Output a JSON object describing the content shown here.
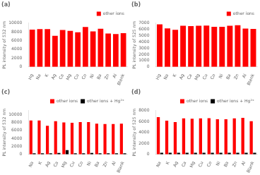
{
  "chart_data": [
    {
      "type": "bar",
      "title": "(a)",
      "ylabel": "PL intensity of 532 nm",
      "categories": [
        "Hg",
        "Na",
        "K",
        "Ag",
        "Ca",
        "Mg",
        "Cu",
        "Co",
        "Ni",
        "Ba",
        "Zn",
        "Al",
        "Blank"
      ],
      "series": [
        {
          "name": "other ions",
          "color": "#ff0000",
          "values": [
            8500,
            8600,
            8600,
            7100,
            8400,
            8200,
            7900,
            9100,
            8100,
            8700,
            7600,
            7500,
            7700
          ]
        }
      ],
      "ylim": [
        0,
        10000
      ],
      "yticks": [
        0,
        2000,
        4000,
        6000,
        8000,
        10000
      ],
      "grid": false,
      "legend": "upper right"
    },
    {
      "type": "bar",
      "title": "(b)",
      "ylabel": "PL intensity of 525 nm",
      "categories": [
        "Hg",
        "Na",
        "K",
        "Ag",
        "Ca",
        "Mg",
        "Cu",
        "Co",
        "Ni",
        "Ba",
        "Zn",
        "Al",
        "Blank"
      ],
      "series": [
        {
          "name": "other ions",
          "color": "#ff0000",
          "values": [
            6800,
            6150,
            5900,
            6550,
            6500,
            6550,
            6600,
            6400,
            6400,
            6550,
            6650,
            6100,
            6050
          ]
        }
      ],
      "ylim": [
        0,
        7000
      ],
      "yticks": [
        0,
        1000,
        2000,
        3000,
        4000,
        5000,
        6000,
        7000
      ],
      "grid": false,
      "legend": "upper right"
    },
    {
      "type": "bar",
      "title": "(c)",
      "ylabel": "PL intensity of 532 nm",
      "categories": [
        "Na",
        "K",
        "Ag",
        "Ca",
        "Mg",
        "Cu",
        "Co",
        "Ni",
        "Ba",
        "Zn",
        "Al",
        "Blank"
      ],
      "series": [
        {
          "name": "other ions",
          "color": "#ff0000",
          "values": [
            8500,
            8500,
            7150,
            8300,
            8000,
            7900,
            8100,
            8100,
            7700,
            7600,
            7600,
            7700
          ]
        },
        {
          "name": "other ions + Hg²⁺",
          "color": "#000000",
          "values": [
            250,
            250,
            250,
            350,
            1050,
            250,
            250,
            350,
            250,
            250,
            250,
            250
          ]
        }
      ],
      "ylim": [
        0,
        11000
      ],
      "yticks": [
        0,
        2000,
        4000,
        6000,
        8000,
        10000
      ],
      "grid": false,
      "legend": "upper right"
    },
    {
      "type": "bar",
      "title": "(d)",
      "ylabel": "PL intensity of 525 nm",
      "categories": [
        "Na",
        "K",
        "Ag",
        "Ca",
        "Mg",
        "Cu",
        "Co",
        "Ni",
        "Ba",
        "Zn",
        "Al",
        "Blank"
      ],
      "series": [
        {
          "name": "other ions",
          "color": "#ff0000",
          "values": [
            6800,
            6150,
            5900,
            6550,
            6500,
            6550,
            6600,
            6400,
            6400,
            6550,
            6650,
            6050
          ]
        },
        {
          "name": "other ions + Hg²⁺",
          "color": "#000000",
          "values": [
            280,
            280,
            280,
            300,
            280,
            280,
            280,
            280,
            280,
            280,
            280,
            280
          ]
        }
      ],
      "ylim": [
        0,
        8000
      ],
      "yticks": [
        0,
        2000,
        4000,
        6000,
        8000
      ],
      "grid": false,
      "legend": "upper right"
    }
  ]
}
